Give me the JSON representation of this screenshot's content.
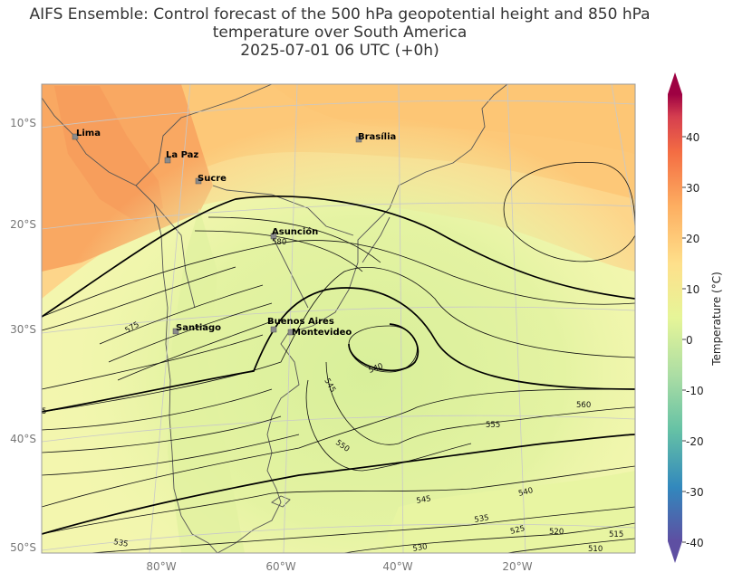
{
  "title": {
    "line1": "AIFS Ensemble: Control forecast of the 500 hPa geopotential height and 850 hPa",
    "line2": "temperature over South America",
    "line3": "2025-07-01 06 UTC (+0h)"
  },
  "latitude_labels": [
    "10°S",
    "20°S",
    "30°S",
    "40°S",
    "50°S"
  ],
  "longitude_labels": [
    "80°W",
    "60°W",
    "40°W",
    "20°W"
  ],
  "cities": [
    {
      "name": "Lima"
    },
    {
      "name": "La Paz"
    },
    {
      "name": "Sucre"
    },
    {
      "name": "Brasília"
    },
    {
      "name": "Asunción"
    },
    {
      "name": "Santiago"
    },
    {
      "name": "Buenos Aires"
    },
    {
      "name": "Montevideo"
    }
  ],
  "contour_labels": [
    "580",
    "575",
    "545",
    "540",
    "560",
    "555",
    "550",
    "545",
    "540",
    "535",
    "530",
    "525",
    "520",
    "515",
    "510",
    "535",
    "5"
  ],
  "colorbar": {
    "title": "Temperature (°C)",
    "ticks": [
      "40",
      "30",
      "20",
      "10",
      "0",
      "-10",
      "-20",
      "-30",
      "-40"
    ],
    "range": [
      -40,
      40
    ],
    "colors": [
      "#5e4fa2",
      "#3288bd",
      "#66c2a5",
      "#abdda4",
      "#e6f598",
      "#fee08b",
      "#fdae61",
      "#f46d43",
      "#d53e4f",
      "#9e0142"
    ]
  }
}
